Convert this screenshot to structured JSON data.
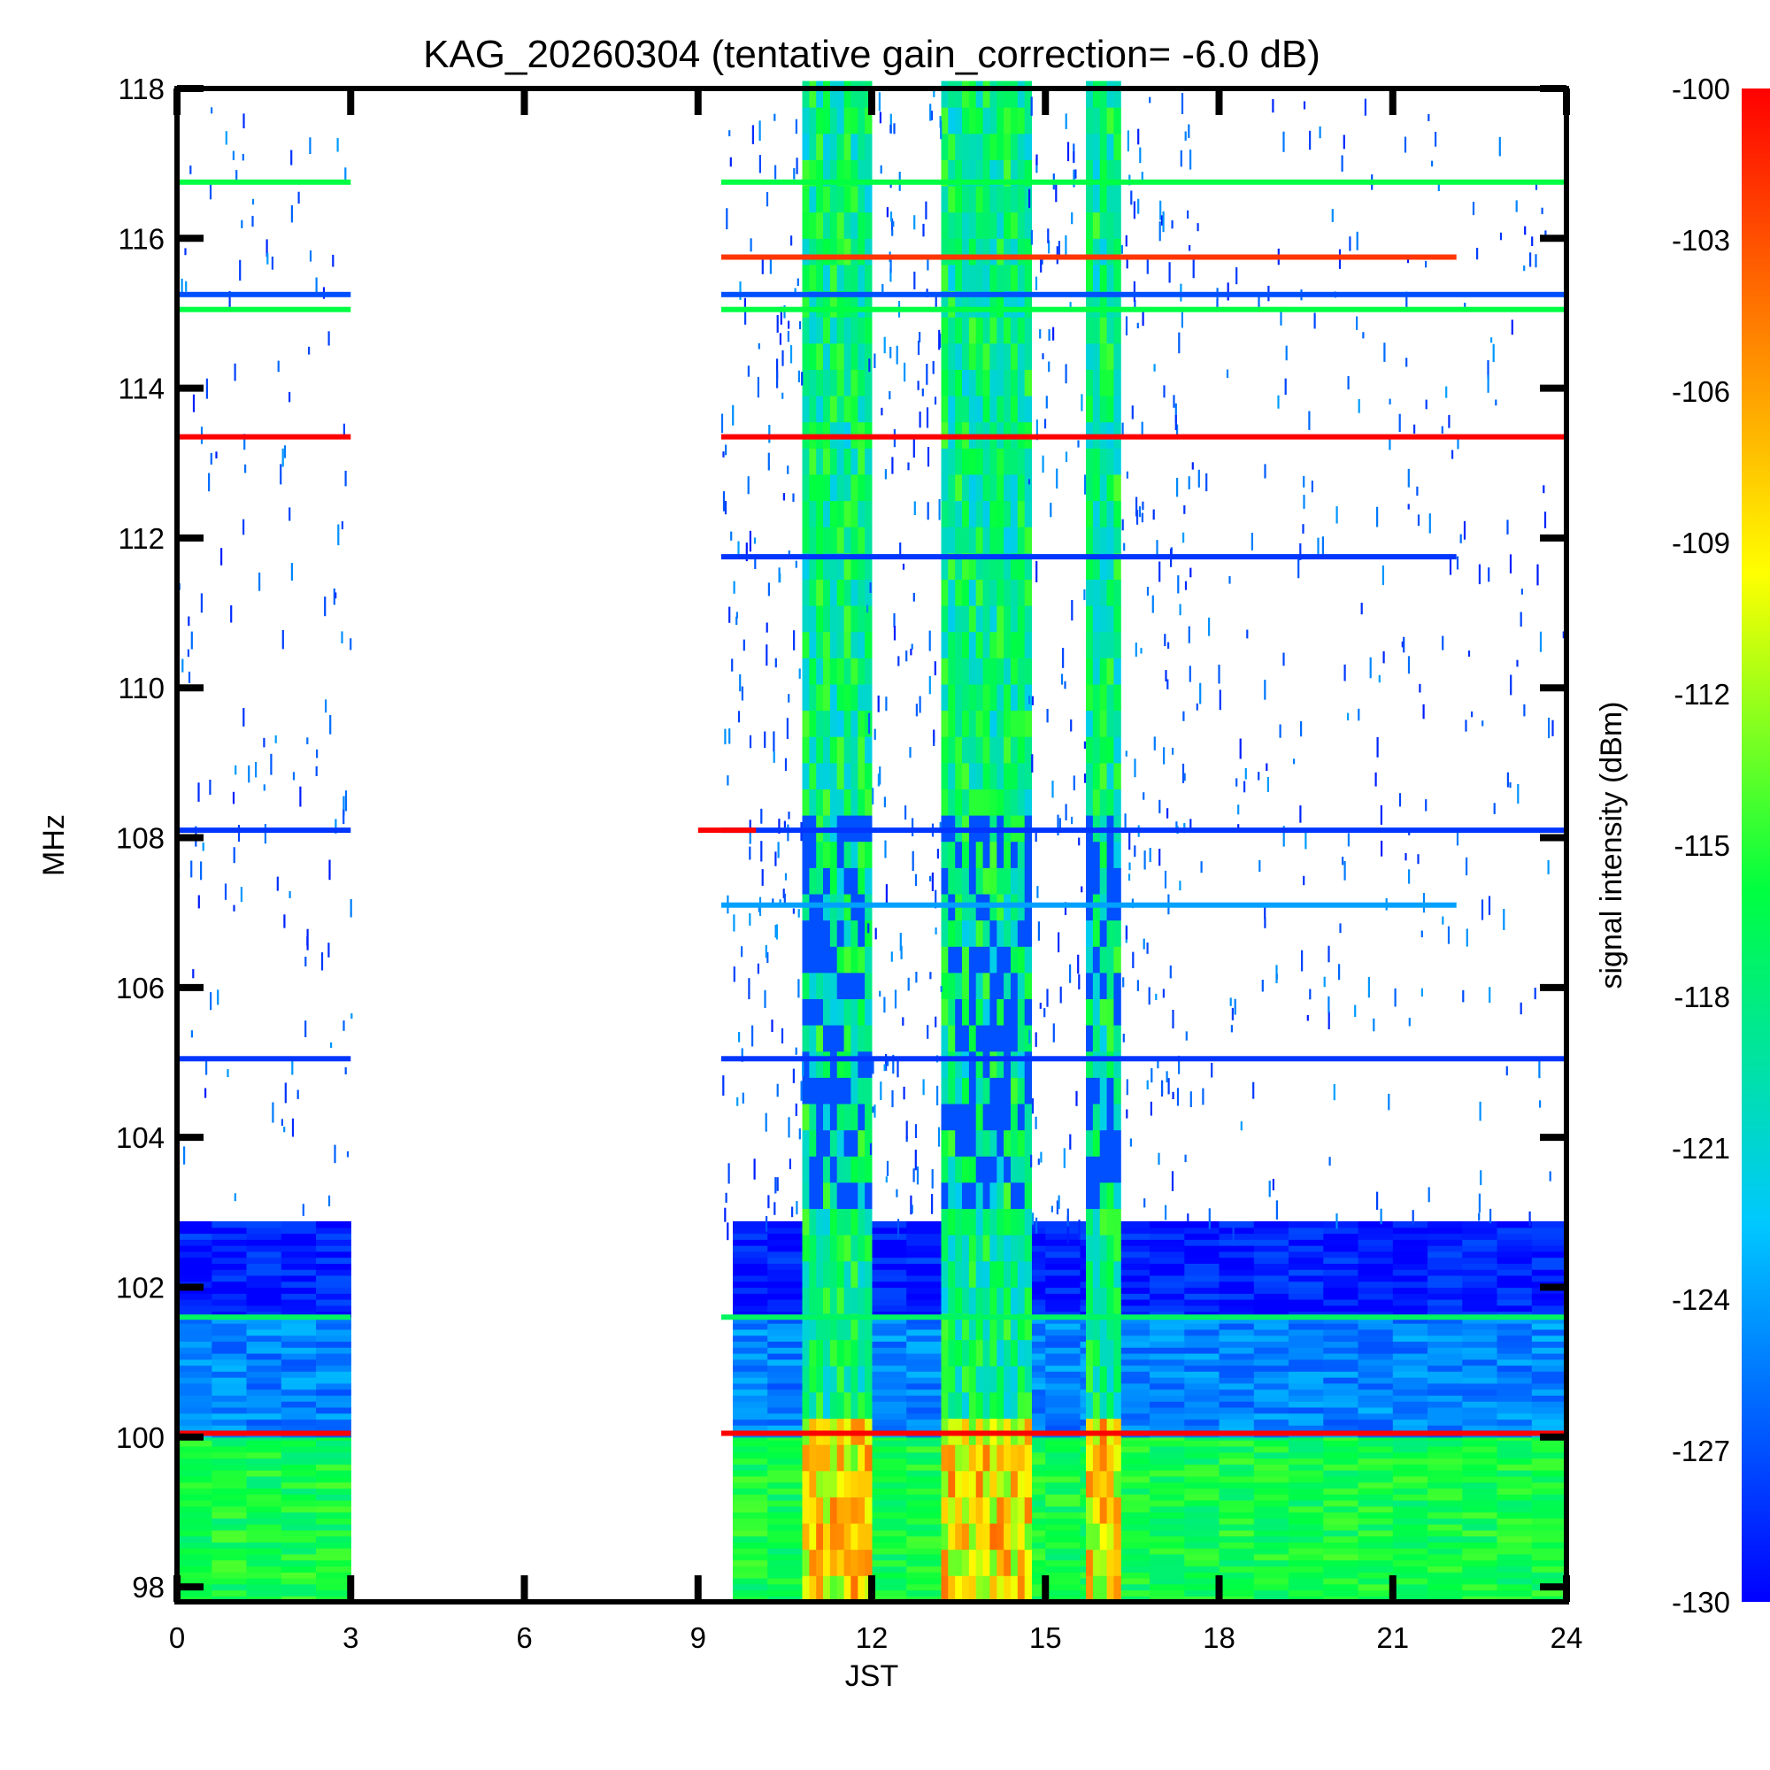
{
  "chart_data": {
    "type": "heatmap",
    "title": "KAG_20260304 (tentative gain_correction= -6.0 dB)",
    "xlabel": "JST",
    "ylabel": "MHz",
    "xlim": [
      0,
      24
    ],
    "ylim": [
      97.8,
      118
    ],
    "x_ticks": [
      "0",
      "3",
      "6",
      "9",
      "12",
      "15",
      "18",
      "21",
      "24"
    ],
    "y_ticks": [
      "98",
      "100",
      "102",
      "104",
      "106",
      "108",
      "110",
      "112",
      "114",
      "116",
      "118"
    ],
    "colorbar": {
      "label": "signal intensity (dBm)",
      "range": [
        -130,
        -100
      ],
      "ticks": [
        "-100",
        "-103",
        "-106",
        "-109",
        "-112",
        "-115",
        "-118",
        "-121",
        "-124",
        "-127",
        "-130"
      ],
      "colormap": [
        "#0000ff",
        "#00c8ff",
        "#00ff40",
        "#ffff00",
        "#ff8000",
        "#ff0000"
      ]
    },
    "data_gaps_jst": [
      [
        3.0,
        9.4
      ]
    ],
    "continuous_lines": [
      {
        "freq_mhz": 116.75,
        "dbm": -116,
        "t_start": 0,
        "t_end": 24
      },
      {
        "freq_mhz": 115.75,
        "dbm": -102,
        "t_start": 9.4,
        "t_end": 22.1
      },
      {
        "freq_mhz": 115.25,
        "dbm": -127,
        "t_start": 0,
        "t_end": 24
      },
      {
        "freq_mhz": 115.05,
        "dbm": -116,
        "t_start": 0,
        "t_end": 24
      },
      {
        "freq_mhz": 113.35,
        "dbm": -100,
        "t_start": 0,
        "t_end": 24
      },
      {
        "freq_mhz": 111.75,
        "dbm": -128,
        "t_start": 9.4,
        "t_end": 22.1
      },
      {
        "freq_mhz": 108.1,
        "dbm": -128,
        "t_start": 0,
        "t_end": 24
      },
      {
        "freq_mhz": 107.1,
        "dbm": -124,
        "t_start": 9.4,
        "t_end": 22.1
      },
      {
        "freq_mhz": 105.05,
        "dbm": -128,
        "t_start": 0,
        "t_end": 24
      },
      {
        "freq_mhz": 101.6,
        "dbm": -117,
        "t_start": 0,
        "t_end": 24
      },
      {
        "freq_mhz": 100.05,
        "dbm": -100,
        "t_start": 0,
        "t_end": 24
      }
    ],
    "broadband_bursts_jst": [
      [
        10.8,
        11.9
      ],
      [
        13.2,
        14.7
      ],
      [
        15.7,
        16.3
      ]
    ],
    "background_levels": [
      {
        "freq_range_mhz": [
          97.8,
          100.0
        ],
        "dbm": -116
      },
      {
        "freq_range_mhz": [
          100.0,
          101.6
        ],
        "dbm": -125
      },
      {
        "freq_range_mhz": [
          101.6,
          102.8
        ],
        "dbm": -129
      }
    ]
  }
}
